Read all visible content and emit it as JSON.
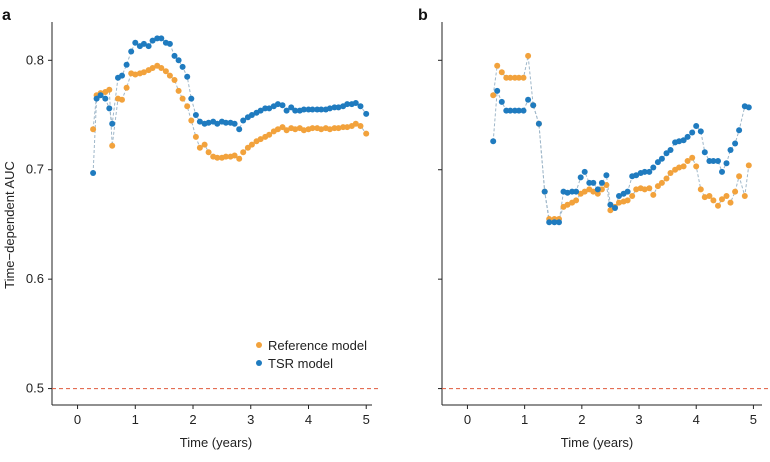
{
  "ylabel": "Time−dependent AUC",
  "colors": {
    "reference": "#f2a23c",
    "tsr": "#1f7bbf",
    "connector": "#9fb7c9",
    "baseline": "#e05a3c",
    "axis": "#222222"
  },
  "legend": {
    "reference_label": "Reference model",
    "tsr_label": "TSR model"
  },
  "chart_data": [
    {
      "panel_label": "a",
      "type": "scatter",
      "title": "",
      "xlabel": "Time (years)",
      "ylabel": "Time−dependent AUC",
      "xlim": [
        -0.2,
        5.1
      ],
      "ylim": [
        0.485,
        0.835
      ],
      "xticks": [
        0,
        1,
        2,
        3,
        4,
        5
      ],
      "yticks": [
        0.5,
        0.6,
        0.7,
        0.8
      ],
      "ytick_labels": [
        "0.5",
        "0.6",
        "0.7",
        "0.8"
      ],
      "reference_line": 0.5,
      "legend_position": "bottom-right",
      "series": [
        {
          "name": "Reference model",
          "color": "#f2a23c",
          "connected": true,
          "x": [
            0.27,
            0.33,
            0.4,
            0.48,
            0.55,
            0.6,
            0.7,
            0.77,
            0.85,
            0.93,
            1.0,
            1.08,
            1.15,
            1.23,
            1.3,
            1.38,
            1.45,
            1.53,
            1.6,
            1.68,
            1.75,
            1.82,
            1.9,
            1.97,
            2.05,
            2.12,
            2.2,
            2.27,
            2.35,
            2.42,
            2.5,
            2.57,
            2.65,
            2.72,
            2.8,
            2.87,
            2.95,
            3.02,
            3.1,
            3.17,
            3.25,
            3.32,
            3.4,
            3.47,
            3.55,
            3.62,
            3.7,
            3.77,
            3.85,
            3.92,
            4.0,
            4.07,
            4.15,
            4.22,
            4.3,
            4.37,
            4.45,
            4.52,
            4.6,
            4.67,
            4.75,
            4.82,
            4.9,
            5.0
          ],
          "y": [
            0.737,
            0.768,
            0.77,
            0.771,
            0.773,
            0.722,
            0.765,
            0.764,
            0.775,
            0.788,
            0.787,
            0.788,
            0.789,
            0.791,
            0.793,
            0.795,
            0.793,
            0.79,
            0.786,
            0.782,
            0.772,
            0.765,
            0.758,
            0.745,
            0.73,
            0.72,
            0.723,
            0.716,
            0.712,
            0.711,
            0.711,
            0.712,
            0.712,
            0.713,
            0.71,
            0.716,
            0.72,
            0.723,
            0.726,
            0.728,
            0.73,
            0.732,
            0.735,
            0.737,
            0.739,
            0.736,
            0.738,
            0.737,
            0.738,
            0.736,
            0.737,
            0.738,
            0.738,
            0.737,
            0.738,
            0.737,
            0.738,
            0.738,
            0.739,
            0.739,
            0.74,
            0.742,
            0.74,
            0.733
          ]
        },
        {
          "name": "TSR model",
          "color": "#1f7bbf",
          "connected": true,
          "x": [
            0.27,
            0.33,
            0.4,
            0.48,
            0.55,
            0.6,
            0.7,
            0.77,
            0.85,
            0.93,
            1.0,
            1.08,
            1.15,
            1.23,
            1.3,
            1.38,
            1.45,
            1.53,
            1.6,
            1.68,
            1.75,
            1.82,
            1.9,
            1.97,
            2.05,
            2.12,
            2.2,
            2.27,
            2.35,
            2.42,
            2.5,
            2.57,
            2.65,
            2.72,
            2.8,
            2.87,
            2.95,
            3.02,
            3.1,
            3.17,
            3.25,
            3.32,
            3.4,
            3.47,
            3.55,
            3.62,
            3.7,
            3.77,
            3.85,
            3.92,
            4.0,
            4.07,
            4.15,
            4.22,
            4.3,
            4.37,
            4.45,
            4.52,
            4.6,
            4.67,
            4.75,
            4.82,
            4.9,
            5.0
          ],
          "y": [
            0.697,
            0.765,
            0.768,
            0.765,
            0.756,
            0.742,
            0.784,
            0.786,
            0.796,
            0.808,
            0.816,
            0.813,
            0.815,
            0.813,
            0.818,
            0.82,
            0.82,
            0.816,
            0.815,
            0.804,
            0.8,
            0.794,
            0.785,
            0.765,
            0.75,
            0.744,
            0.742,
            0.743,
            0.744,
            0.742,
            0.744,
            0.743,
            0.743,
            0.742,
            0.737,
            0.745,
            0.748,
            0.75,
            0.752,
            0.754,
            0.756,
            0.756,
            0.758,
            0.76,
            0.759,
            0.754,
            0.757,
            0.754,
            0.754,
            0.755,
            0.755,
            0.755,
            0.755,
            0.755,
            0.755,
            0.756,
            0.757,
            0.757,
            0.758,
            0.76,
            0.76,
            0.761,
            0.758,
            0.751
          ]
        }
      ]
    },
    {
      "panel_label": "b",
      "type": "scatter",
      "title": "",
      "xlabel": "Time (years)",
      "ylabel": "",
      "xlim": [
        -0.2,
        5.15
      ],
      "ylim": [
        0.485,
        0.835
      ],
      "xticks": [
        0,
        1,
        2,
        3,
        4,
        5
      ],
      "yticks": [
        0.5,
        0.6,
        0.7,
        0.8
      ],
      "ytick_labels": [
        "",
        "",
        "",
        ""
      ],
      "reference_line": 0.5,
      "series": [
        {
          "name": "Reference model",
          "color": "#f2a23c",
          "connected": true,
          "x": [
            0.45,
            0.52,
            0.6,
            0.68,
            0.75,
            0.83,
            0.9,
            0.98,
            1.06,
            1.15,
            1.25,
            1.35,
            1.43,
            1.52,
            1.6,
            1.68,
            1.75,
            1.83,
            1.9,
            1.98,
            2.05,
            2.13,
            2.2,
            2.28,
            2.35,
            2.43,
            2.5,
            2.58,
            2.65,
            2.73,
            2.8,
            2.88,
            2.95,
            3.03,
            3.1,
            3.18,
            3.25,
            3.33,
            3.4,
            3.48,
            3.55,
            3.63,
            3.7,
            3.78,
            3.85,
            3.93,
            4.0,
            4.08,
            4.15,
            4.23,
            4.3,
            4.38,
            4.45,
            4.53,
            4.6,
            4.68,
            4.75,
            4.85,
            4.92
          ],
          "y": [
            0.768,
            0.795,
            0.789,
            0.784,
            0.784,
            0.784,
            0.784,
            0.784,
            0.804,
            0.759,
            0.742,
            0.68,
            0.655,
            0.655,
            0.655,
            0.666,
            0.668,
            0.67,
            0.672,
            0.678,
            0.68,
            0.682,
            0.68,
            0.678,
            0.682,
            0.686,
            0.663,
            0.666,
            0.67,
            0.671,
            0.672,
            0.676,
            0.682,
            0.683,
            0.682,
            0.683,
            0.677,
            0.685,
            0.688,
            0.692,
            0.697,
            0.7,
            0.702,
            0.703,
            0.708,
            0.711,
            0.703,
            0.682,
            0.675,
            0.676,
            0.672,
            0.667,
            0.673,
            0.676,
            0.67,
            0.68,
            0.694,
            0.676,
            0.704
          ]
        },
        {
          "name": "TSR model",
          "color": "#1f7bbf",
          "connected": true,
          "x": [
            0.45,
            0.52,
            0.6,
            0.68,
            0.75,
            0.83,
            0.9,
            0.98,
            1.06,
            1.15,
            1.25,
            1.35,
            1.43,
            1.52,
            1.6,
            1.68,
            1.75,
            1.83,
            1.9,
            1.98,
            2.05,
            2.13,
            2.2,
            2.28,
            2.35,
            2.43,
            2.5,
            2.58,
            2.65,
            2.73,
            2.8,
            2.88,
            2.95,
            3.03,
            3.1,
            3.18,
            3.25,
            3.33,
            3.4,
            3.48,
            3.55,
            3.63,
            3.7,
            3.78,
            3.85,
            3.93,
            4.0,
            4.08,
            4.15,
            4.23,
            4.3,
            4.38,
            4.45,
            4.53,
            4.6,
            4.68,
            4.75,
            4.85,
            4.92
          ],
          "y": [
            0.726,
            0.772,
            0.762,
            0.754,
            0.754,
            0.754,
            0.754,
            0.754,
            0.764,
            0.759,
            0.742,
            0.68,
            0.652,
            0.652,
            0.652,
            0.68,
            0.679,
            0.68,
            0.68,
            0.693,
            0.698,
            0.688,
            0.688,
            0.682,
            0.688,
            0.695,
            0.668,
            0.665,
            0.676,
            0.678,
            0.68,
            0.694,
            0.695,
            0.697,
            0.698,
            0.698,
            0.702,
            0.707,
            0.71,
            0.715,
            0.718,
            0.725,
            0.726,
            0.727,
            0.73,
            0.734,
            0.74,
            0.735,
            0.716,
            0.708,
            0.708,
            0.708,
            0.698,
            0.706,
            0.718,
            0.724,
            0.736,
            0.758,
            0.757
          ]
        }
      ]
    }
  ]
}
